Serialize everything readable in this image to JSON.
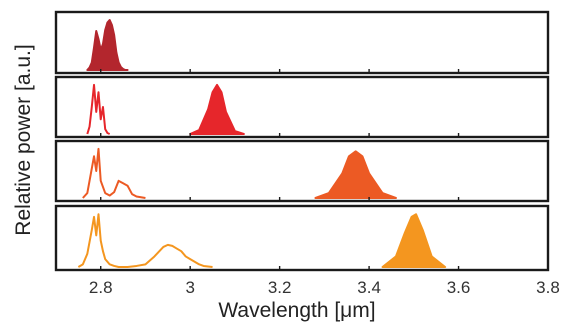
{
  "chart_data": {
    "type": "line",
    "xlabel": "Wavelength [μm]",
    "ylabel": "Relative power [a.u.]",
    "xlim": [
      2.7,
      3.8
    ],
    "xticks": [
      2.8,
      3.0,
      3.2,
      3.4,
      3.6,
      3.8
    ],
    "xtick_labels": [
      "2.8",
      "3",
      "3.2",
      "3.4",
      "3.6",
      "3.8"
    ],
    "ylim": [
      0,
      1.1
    ],
    "grid": false,
    "panels": [
      {
        "color": "#b3262d",
        "series": [
          {
            "x": [
              2.77,
              2.775,
              2.78,
              2.785,
              2.79,
              2.795,
              2.8,
              2.805,
              2.81,
              2.815,
              2.82,
              2.825,
              2.83,
              2.835,
              2.84,
              2.845,
              2.85,
              2.855,
              2.86
            ],
            "y": [
              0.0,
              0.05,
              0.15,
              0.45,
              0.78,
              0.62,
              0.4,
              0.52,
              0.8,
              0.95,
              1.0,
              0.9,
              0.7,
              0.35,
              0.15,
              0.06,
              0.02,
              0.0,
              0.0
            ],
            "fill": true
          }
        ]
      },
      {
        "color": "#e6262b",
        "series": [
          {
            "x": [
              2.77,
              2.775,
              2.78,
              2.785,
              2.79,
              2.795,
              2.8,
              2.805,
              2.81,
              2.815,
              2.82
            ],
            "y": [
              0.0,
              0.15,
              0.55,
              1.0,
              0.45,
              0.85,
              0.3,
              0.55,
              0.1,
              0.02,
              0.0
            ],
            "fill": false
          },
          {
            "x": [
              3.0,
              3.02,
              3.04,
              3.05,
              3.06,
              3.07,
              3.08,
              3.1,
              3.12
            ],
            "y": [
              0.0,
              0.08,
              0.5,
              0.85,
              1.0,
              0.85,
              0.45,
              0.06,
              0.0
            ],
            "fill": true
          }
        ]
      },
      {
        "color": "#ec5a24",
        "series": [
          {
            "x": [
              2.76,
              2.77,
              2.78,
              2.785,
              2.79,
              2.795,
              2.8,
              2.81,
              2.82,
              2.83,
              2.84,
              2.85,
              2.86,
              2.87,
              2.88,
              2.9
            ],
            "y": [
              0.0,
              0.1,
              0.6,
              0.85,
              0.55,
              1.0,
              0.35,
              0.1,
              0.05,
              0.12,
              0.35,
              0.3,
              0.25,
              0.08,
              0.03,
              0.0
            ],
            "fill": false
          },
          {
            "x": [
              3.28,
              3.31,
              3.34,
              3.355,
              3.37,
              3.385,
              3.4,
              3.43,
              3.46
            ],
            "y": [
              0.0,
              0.1,
              0.5,
              0.85,
              0.95,
              0.85,
              0.5,
              0.1,
              0.0
            ],
            "fill": true
          }
        ]
      },
      {
        "color": "#f4961f",
        "series": [
          {
            "x": [
              2.75,
              2.76,
              2.77,
              2.78,
              2.785,
              2.79,
              2.795,
              2.8,
              2.805,
              2.81,
              2.82,
              2.83,
              2.84,
              2.86,
              2.88,
              2.9,
              2.92,
              2.94,
              2.95,
              2.96,
              2.97,
              2.98,
              2.99,
              3.0,
              3.01,
              3.02,
              3.03,
              3.05
            ],
            "y": [
              0.0,
              0.05,
              0.25,
              0.7,
              0.95,
              0.6,
              1.0,
              0.5,
              0.3,
              0.15,
              0.05,
              0.02,
              0.0,
              0.0,
              0.02,
              0.05,
              0.2,
              0.38,
              0.42,
              0.4,
              0.35,
              0.3,
              0.2,
              0.15,
              0.1,
              0.05,
              0.02,
              0.0
            ],
            "fill": false
          },
          {
            "x": [
              3.43,
              3.46,
              3.48,
              3.495,
              3.505,
              3.52,
              3.54,
              3.57
            ],
            "y": [
              0.0,
              0.2,
              0.65,
              0.95,
              1.0,
              0.7,
              0.2,
              0.0
            ],
            "fill": true
          }
        ]
      }
    ]
  }
}
